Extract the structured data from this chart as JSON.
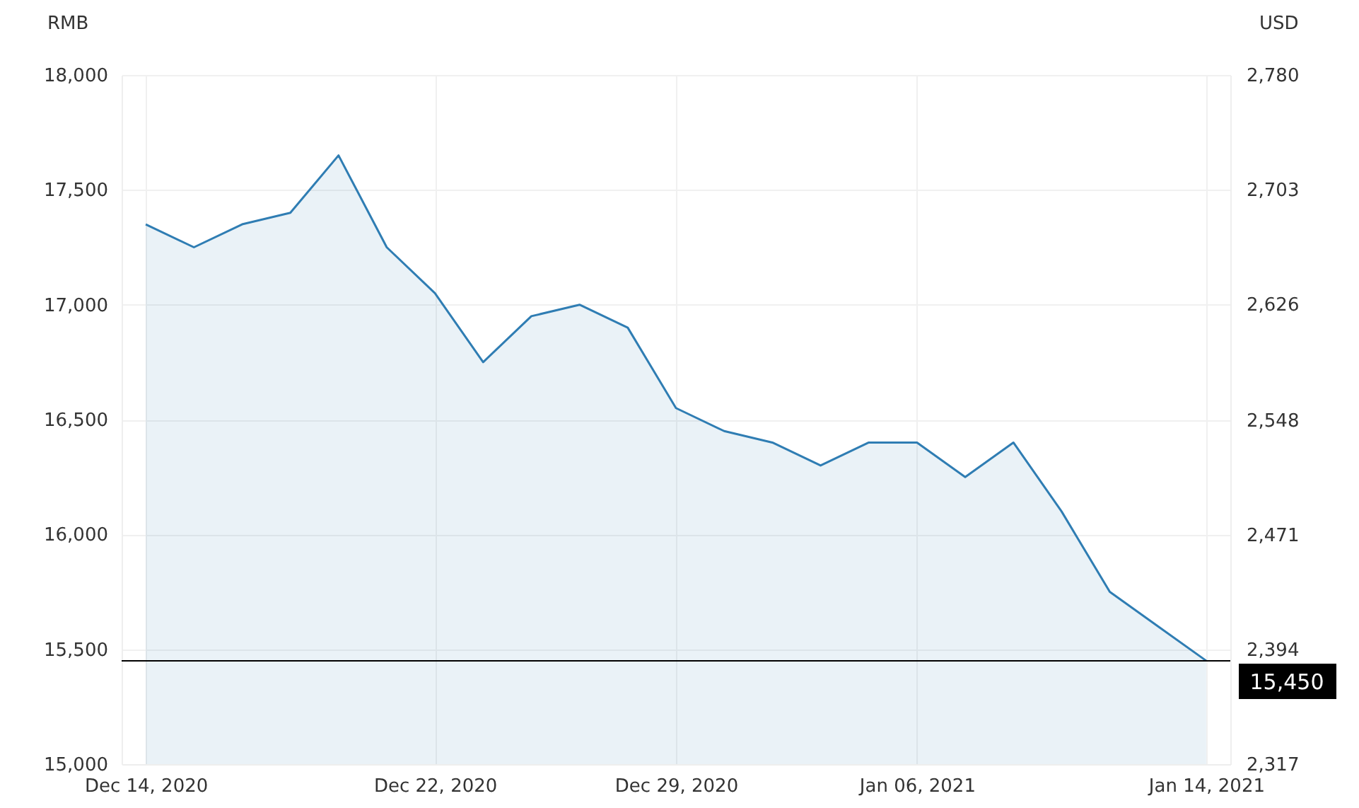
{
  "chart_data": {
    "type": "area",
    "ylabel": "RMB",
    "y2label": "USD",
    "categories": [
      "Dec 14, 2020",
      null,
      null,
      null,
      null,
      null,
      "Dec 22, 2020",
      null,
      null,
      null,
      null,
      "Dec 29, 2020",
      null,
      null,
      null,
      null,
      "Jan 06, 2021",
      null,
      null,
      null,
      null,
      null,
      "Jan 14, 2021"
    ],
    "series": [
      {
        "color": "#2f7db3",
        "values": [
          17350,
          17250,
          17350,
          17400,
          17650,
          17250,
          17050,
          16750,
          16950,
          17000,
          16900,
          16550,
          16450,
          16400,
          16300,
          16400,
          16400,
          16250,
          16400,
          16100,
          15750,
          15600,
          15450
        ]
      }
    ],
    "ylim": [
      15000,
      18000
    ],
    "yticks": [
      {
        "value": 15000,
        "label": "15,000"
      },
      {
        "value": 15500,
        "label": "15,500"
      },
      {
        "value": 16000,
        "label": "16,000"
      },
      {
        "value": 16500,
        "label": "16,500"
      },
      {
        "value": 17000,
        "label": "17,000"
      },
      {
        "value": 17500,
        "label": "17,500"
      },
      {
        "value": 18000,
        "label": "18,000"
      }
    ],
    "y2lim": [
      2317,
      2780
    ],
    "y2ticks": [
      {
        "value": 2317,
        "label": "2,317"
      },
      {
        "value": 2394,
        "label": "2,394"
      },
      {
        "value": 2471,
        "label": "2,471"
      },
      {
        "value": 2548,
        "label": "2,548"
      },
      {
        "value": 2626,
        "label": "2,626"
      },
      {
        "value": 2703,
        "label": "2,703"
      },
      {
        "value": 2780,
        "label": "2,780"
      }
    ],
    "ref_lines": [
      {
        "axis": "y",
        "value": 15450,
        "label": "15,450",
        "color": "#000000"
      }
    ],
    "grid": true
  }
}
